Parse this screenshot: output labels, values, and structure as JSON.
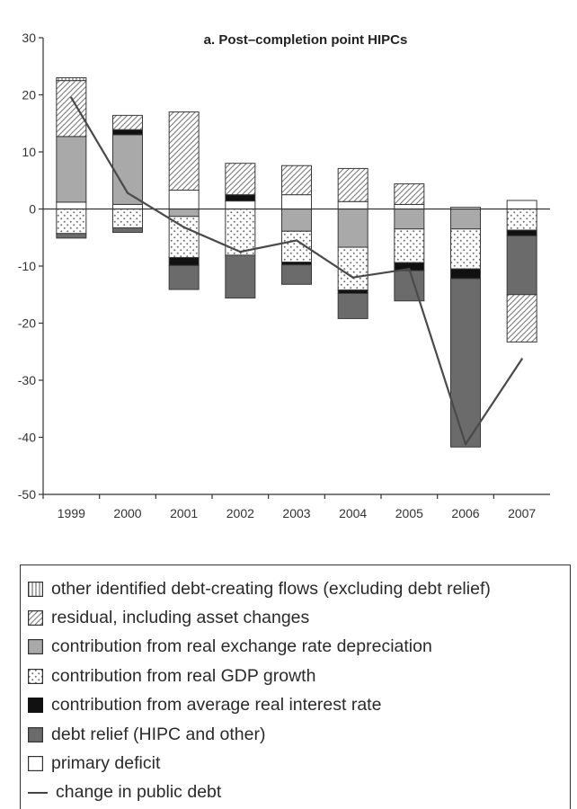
{
  "chart_data": {
    "type": "bar",
    "stacked": true,
    "title": "a. Post–completion point HIPCs",
    "xlabel": "",
    "ylabel": "",
    "ylim": [
      -50,
      30
    ],
    "yticks": [
      30,
      20,
      10,
      0,
      -10,
      -20,
      -30,
      -40,
      -50
    ],
    "grid": false,
    "legend_position": "bottom",
    "categories": [
      "1999",
      "2000",
      "2001",
      "2002",
      "2003",
      "2004",
      "2005",
      "2006",
      "2007"
    ],
    "series": [
      {
        "name": "other identified debt-creating flows (excluding debt relief)",
        "key": "other",
        "values": [
          0.5,
          0,
          0,
          0,
          0,
          0,
          0,
          0,
          0
        ]
      },
      {
        "name": "residual, including asset changes",
        "key": "residual",
        "values": [
          9.8,
          2.5,
          13.7,
          5.5,
          5.1,
          5.8,
          3.6,
          0,
          -8.3
        ]
      },
      {
        "name": "contribution from real exchange rate depreciation",
        "key": "rer",
        "values": [
          11.5,
          12.2,
          -1.3,
          0,
          -3.9,
          -6.7,
          -3.5,
          -3.5,
          0
        ]
      },
      {
        "name": "contribution from real GDP growth",
        "key": "gdp",
        "values": [
          -4.3,
          -3.3,
          -7.2,
          -8.1,
          -5.4,
          -7.5,
          -5.9,
          -7.0,
          -3.7
        ]
      },
      {
        "name": "contribution from average real interest rate",
        "key": "interest",
        "values": [
          0,
          0.9,
          -1.4,
          1.1,
          -0.5,
          -0.6,
          -1.4,
          -1.7,
          -1.0
        ]
      },
      {
        "name": "debt relief (HIPC and other)",
        "key": "relief",
        "values": [
          -0.8,
          -0.8,
          -4.2,
          -7.5,
          -3.4,
          -4.4,
          -5.3,
          -29.5,
          -10.3
        ]
      },
      {
        "name": "primary deficit",
        "key": "primary",
        "values": [
          1.2,
          0.8,
          3.3,
          1.4,
          2.5,
          1.3,
          0.8,
          0.3,
          1.5
        ]
      }
    ],
    "line": {
      "name": "change in public debt",
      "values": [
        19.5,
        2.8,
        -3.2,
        -7.5,
        -5.5,
        -12.0,
        -10.5,
        -41.2,
        -26.3
      ]
    },
    "legend": [
      {
        "key": "other",
        "label": "other identified debt-creating flows (excluding debt relief)"
      },
      {
        "key": "residual",
        "label": "residual, including asset changes"
      },
      {
        "key": "rer",
        "label": "contribution from real exchange rate depreciation"
      },
      {
        "key": "gdp",
        "label": "contribution from real GDP growth"
      },
      {
        "key": "interest",
        "label": "contribution from average real interest rate"
      },
      {
        "key": "relief",
        "label": "debt relief (HIPC and other)"
      },
      {
        "key": "primary",
        "label": "primary deficit"
      },
      {
        "key": "line",
        "label": "change in public debt"
      }
    ]
  }
}
